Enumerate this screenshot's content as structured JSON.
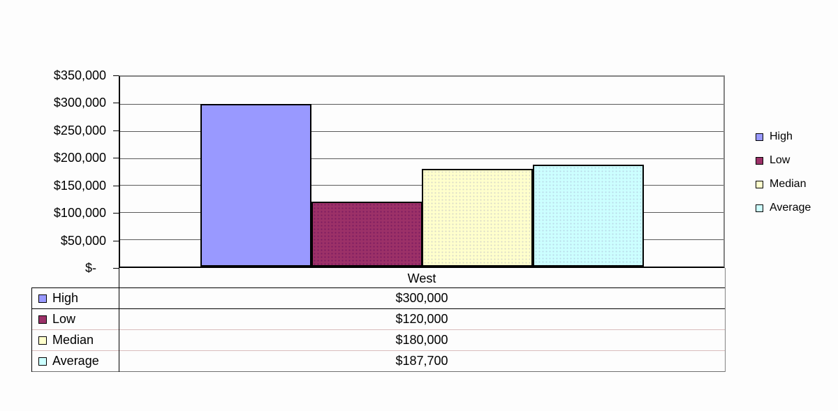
{
  "chart_data": {
    "type": "bar",
    "title": "",
    "xlabel": "",
    "ylabel": "",
    "categories": [
      "West"
    ],
    "series": [
      {
        "name": "High",
        "values": [
          300000
        ],
        "value_label": "$300,000",
        "color": "#9999FF",
        "pattern": "none"
      },
      {
        "name": "Low",
        "values": [
          120000
        ],
        "value_label": "$120,000",
        "color": "#9C3168",
        "pattern": "dots-dark"
      },
      {
        "name": "Median",
        "values": [
          180000
        ],
        "value_label": "$180,000",
        "color": "#FFFFCC",
        "pattern": "dots-faint"
      },
      {
        "name": "Average",
        "values": [
          187700
        ],
        "value_label": "$187,700",
        "color": "#CCFFFF",
        "pattern": "dots-faint"
      }
    ],
    "ylim": [
      0,
      350000
    ],
    "ytick_interval": 50000,
    "ytick_labels": [
      "$350,000",
      "$300,000",
      "$250,000",
      "$200,000",
      "$150,000",
      "$100,000",
      "$50,000",
      "$-"
    ],
    "grid": "horizontal",
    "legend_position": "right",
    "show_data_table": true
  },
  "legend": {
    "items": [
      {
        "label": "High",
        "color": "#9999FF"
      },
      {
        "label": "Low",
        "color": "#9C3168"
      },
      {
        "label": "Median",
        "color": "#FFFFCC"
      },
      {
        "label": "Average",
        "color": "#CCFFFF"
      }
    ]
  },
  "data_table": {
    "category_header": "West",
    "rows": [
      {
        "label": "High",
        "value": "$300,000"
      },
      {
        "label": "Low",
        "value": "$120,000"
      },
      {
        "label": "Median",
        "value": "$180,000"
      },
      {
        "label": "Average",
        "value": "$187,700"
      }
    ]
  },
  "colors": {
    "axis": "#000000",
    "plot_border": "#848484",
    "gridline": "#5a5a5a",
    "table_line_light": "#d9bcbc",
    "table_line_dark": "#000000",
    "table_line_bottom": "#707070"
  }
}
